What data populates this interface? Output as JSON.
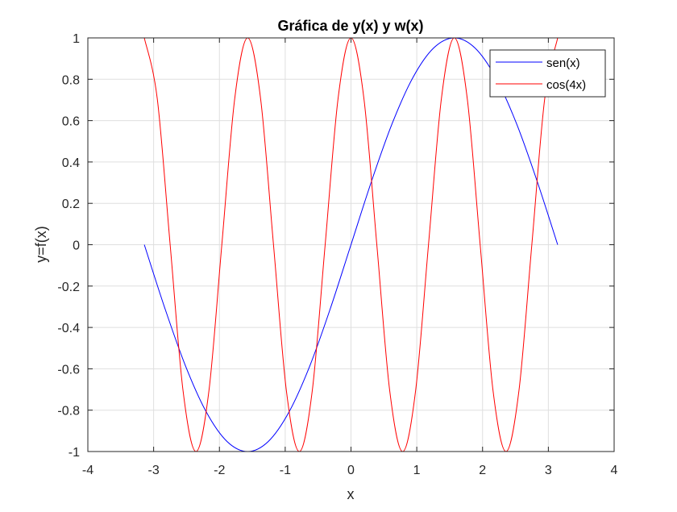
{
  "chart_data": {
    "type": "line",
    "title": "Gráfica de y(x) y w(x)",
    "xlabel": "x",
    "ylabel": "y=f(x)",
    "xlim": [
      -4,
      4
    ],
    "ylim": [
      -1,
      1
    ],
    "xticks": [
      -4,
      -3,
      -2,
      -1,
      0,
      1,
      2,
      3,
      4
    ],
    "yticks": [
      -1,
      -0.8,
      -0.6,
      -0.4,
      -0.2,
      0,
      0.2,
      0.4,
      0.6,
      0.8,
      1
    ],
    "xtick_labels": [
      "-4",
      "-3",
      "-2",
      "-1",
      "0",
      "1",
      "2",
      "3",
      "4"
    ],
    "ytick_labels": [
      "-1",
      "-0.8",
      "-0.6",
      "-0.4",
      "-0.2",
      "0",
      "0.2",
      "0.4",
      "0.6",
      "0.8",
      "1"
    ],
    "grid": true,
    "legend_position": "top-right",
    "series": [
      {
        "name": "sen(x)",
        "color": "#0000ff",
        "x": [
          -3.1416,
          -2.8274,
          -2.5133,
          -2.1991,
          -1.885,
          -1.5708,
          -1.2566,
          -0.9425,
          -0.6283,
          -0.3142,
          0,
          0.3142,
          0.6283,
          0.9425,
          1.2566,
          1.5708,
          1.885,
          2.1991,
          2.5133,
          2.8274,
          3.1416
        ],
        "y": [
          0,
          -0.309,
          -0.5878,
          -0.809,
          -0.9511,
          -1,
          -0.9511,
          -0.809,
          -0.5878,
          -0.309,
          0,
          0.309,
          0.5878,
          0.809,
          0.9511,
          1,
          0.9511,
          0.809,
          0.5878,
          0.309,
          0
        ]
      },
      {
        "name": "cos(4x)",
        "color": "#ff0000",
        "x": [
          -3.1416,
          -2.9452,
          -2.7489,
          -2.5525,
          -2.3562,
          -2.1598,
          -1.9635,
          -1.7671,
          -1.5708,
          -1.3744,
          -1.1781,
          -0.9817,
          -0.7854,
          -0.589,
          -0.3927,
          -0.1963,
          0,
          0.1963,
          0.3927,
          0.589,
          0.7854,
          0.9817,
          1.1781,
          1.3744,
          1.5708,
          1.7671,
          1.9635,
          2.1598,
          2.3562,
          2.5525,
          2.7489,
          2.9452,
          3.1416
        ],
        "y": [
          1,
          0.7071,
          0,
          -0.7071,
          -1,
          -0.7071,
          0,
          0.7071,
          1,
          0.7071,
          0,
          -0.7071,
          -1,
          -0.7071,
          0,
          0.7071,
          1,
          0.7071,
          0,
          -0.7071,
          -1,
          -0.7071,
          0,
          0.7071,
          1,
          0.7071,
          0,
          -0.7071,
          -1,
          -0.7071,
          0,
          0.7071,
          1
        ]
      }
    ]
  }
}
